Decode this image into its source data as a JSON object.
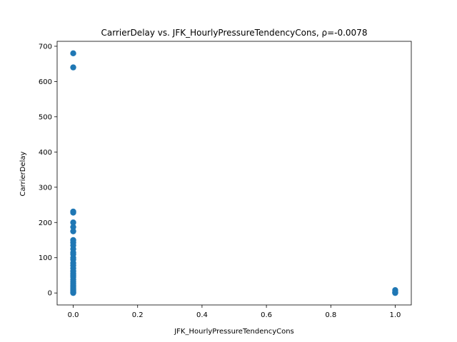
{
  "chart_data": {
    "type": "scatter",
    "title": "CarrierDelay vs. JFK_HourlyPressureTendencyCons, ρ=-0.0078",
    "xlabel": "JFK_HourlyPressureTendencyCons",
    "ylabel": "CarrierDelay",
    "xlim": [
      -0.05,
      1.05
    ],
    "ylim": [
      -34,
      714
    ],
    "xticks": [
      0.0,
      0.2,
      0.4,
      0.6,
      0.8,
      1.0
    ],
    "xtick_labels": [
      "0.0",
      "0.2",
      "0.4",
      "0.6",
      "0.8",
      "1.0"
    ],
    "yticks": [
      0,
      100,
      200,
      300,
      400,
      500,
      600,
      700
    ],
    "ytick_labels": [
      "0",
      "100",
      "200",
      "300",
      "400",
      "500",
      "600",
      "700"
    ],
    "grid": false,
    "marker_color": "#1f77b4",
    "points": [
      {
        "x": 0,
        "y": 680
      },
      {
        "x": 0,
        "y": 640
      },
      {
        "x": 0,
        "y": 231
      },
      {
        "x": 0,
        "y": 228
      },
      {
        "x": 0,
        "y": 200
      },
      {
        "x": 0,
        "y": 187
      },
      {
        "x": 0,
        "y": 175
      },
      {
        "x": 0,
        "y": 150
      },
      {
        "x": 0,
        "y": 143
      },
      {
        "x": 0,
        "y": 135
      },
      {
        "x": 0,
        "y": 125
      },
      {
        "x": 0,
        "y": 115
      },
      {
        "x": 0,
        "y": 110
      },
      {
        "x": 0,
        "y": 100
      },
      {
        "x": 0,
        "y": 95
      },
      {
        "x": 0,
        "y": 85
      },
      {
        "x": 0,
        "y": 78
      },
      {
        "x": 0,
        "y": 70
      },
      {
        "x": 0,
        "y": 62
      },
      {
        "x": 0,
        "y": 55
      },
      {
        "x": 0,
        "y": 50
      },
      {
        "x": 0,
        "y": 45
      },
      {
        "x": 0,
        "y": 38
      },
      {
        "x": 0,
        "y": 32
      },
      {
        "x": 0,
        "y": 27
      },
      {
        "x": 0,
        "y": 22
      },
      {
        "x": 0,
        "y": 18
      },
      {
        "x": 0,
        "y": 14
      },
      {
        "x": 0,
        "y": 10
      },
      {
        "x": 0,
        "y": 7
      },
      {
        "x": 0,
        "y": 4
      },
      {
        "x": 0,
        "y": 2
      },
      {
        "x": 0,
        "y": 0
      },
      {
        "x": 1,
        "y": 8
      },
      {
        "x": 1,
        "y": 3
      },
      {
        "x": 1,
        "y": 1
      },
      {
        "x": 1,
        "y": 0
      }
    ]
  }
}
